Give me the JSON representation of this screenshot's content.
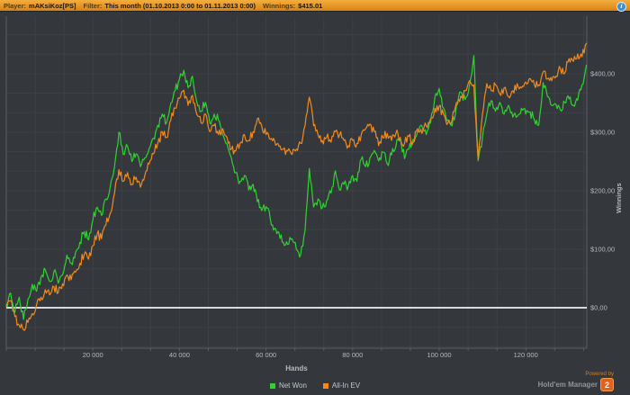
{
  "header": {
    "player_label": "Player:",
    "player_value": "mAKsiKoz[PS]",
    "filter_label": "Filter:",
    "filter_value": "This month (01.10.2013 0:00 to 01.11.2013 0:00)",
    "winnings_label": "Winnings:",
    "winnings_value": "$415.01",
    "info_icon_glyph": "i"
  },
  "branding": {
    "powered_by": "Powered by",
    "name": "Hold'em Manager",
    "badge": "2"
  },
  "colors": {
    "header_bar": "#eda032",
    "background": "#34383c",
    "grid": "#3d4145",
    "axis": "#5a5e62",
    "zero_line": "#d9dadb",
    "tick_text": "#b6babd",
    "net_won": "#2fd330",
    "all_in_ev": "#f28a1e",
    "info_icon": "#3f8fd6",
    "badge": "#e2621b"
  },
  "chart_data": {
    "type": "line",
    "title": "",
    "xlabel": "Hands",
    "ylabel": "Winnings",
    "grid": true,
    "legend_position": "bottom",
    "zero_line_value": 0,
    "xlim": [
      0,
      134000
    ],
    "ylim": [
      -69,
      488
    ],
    "x_unit_step": 1000,
    "x_ticks": [
      {
        "value": 20000,
        "label": "20 000"
      },
      {
        "value": 40000,
        "label": "40 000"
      },
      {
        "value": 60000,
        "label": "60 000"
      },
      {
        "value": 80000,
        "label": "80 000"
      },
      {
        "value": 100000,
        "label": "100 000"
      },
      {
        "value": 120000,
        "label": "120 000"
      }
    ],
    "y_ticks": [
      {
        "value": 400,
        "label": "$400,00"
      },
      {
        "value": 300,
        "label": "$300,00"
      },
      {
        "value": 200,
        "label": "$200,00"
      },
      {
        "value": 100,
        "label": "$100,00"
      },
      {
        "value": 0,
        "label": "$0,00"
      }
    ],
    "series": [
      {
        "name": "Net Won",
        "color": "#2fd330",
        "values": [
          5,
          25,
          -8,
          18,
          -20,
          15,
          40,
          28,
          52,
          65,
          45,
          62,
          42,
          56,
          90,
          76,
          95,
          112,
          130,
          116,
          150,
          172,
          158,
          186,
          206,
          242,
          300,
          262,
          276,
          250,
          263,
          241,
          256,
          272,
          290,
          312,
          331,
          316,
          350,
          371,
          391,
          406,
          376,
          396,
          352,
          336,
          351,
          316,
          331,
          321,
          296,
          280,
          256,
          231,
          216,
          226,
          201,
          211,
          181,
          166,
          173,
          151,
          136,
          128,
          112,
          108,
          118,
          100,
          91,
          131,
          238,
          172,
          186,
          171,
          183,
          196,
          234,
          201,
          211,
          208,
          226,
          216,
          254,
          241,
          256,
          269,
          251,
          266,
          246,
          261,
          276,
          291,
          255,
          271,
          288,
          301,
          311,
          296,
          316,
          360,
          375,
          341,
          321,
          311,
          346,
          369,
          356,
          381,
          431,
          251,
          291,
          331,
          354,
          336,
          351,
          331,
          346,
          326,
          327,
          341,
          331,
          335,
          321,
          312,
          385,
          361,
          346,
          347,
          338,
          351,
          357,
          346,
          355,
          381,
          415
        ]
      },
      {
        "name": "All-In EV",
        "color": "#f28a1e",
        "values": [
          2,
          12,
          -15,
          -30,
          -38,
          -25,
          -10,
          5,
          18,
          31,
          22,
          36,
          26,
          41,
          56,
          48,
          61,
          76,
          91,
          83,
          106,
          126,
          118,
          141,
          161,
          196,
          236,
          216,
          231,
          211,
          223,
          206,
          226,
          246,
          263,
          281,
          301,
          291,
          321,
          341,
          358,
          372,
          346,
          363,
          331,
          316,
          331,
          301,
          311,
          296,
          306,
          291,
          271,
          268,
          281,
          296,
          286,
          301,
          323,
          311,
          296,
          288,
          285,
          276,
          271,
          268,
          262,
          271,
          281,
          311,
          360,
          311,
          296,
          286,
          291,
          283,
          301,
          296,
          286,
          277,
          286,
          281,
          296,
          306,
          314,
          301,
          277,
          291,
          298,
          286,
          298,
          291,
          281,
          293,
          283,
          306,
          298,
          311,
          323,
          341,
          345,
          331,
          316,
          321,
          351,
          362,
          371,
          388,
          381,
          254,
          331,
          383,
          371,
          381,
          366,
          376,
          361,
          371,
          383,
          376,
          386,
          392,
          381,
          381,
          403,
          391,
          388,
          396,
          408,
          401,
          426,
          421,
          434,
          429,
          452
        ]
      }
    ]
  }
}
